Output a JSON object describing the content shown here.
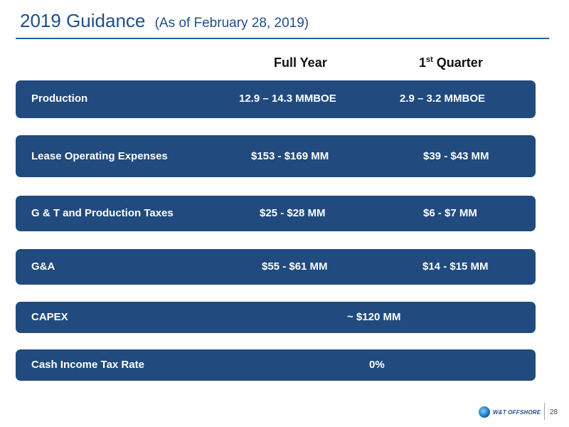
{
  "title": {
    "main": "2019 Guidance",
    "sub": "(As of February 28, 2019)"
  },
  "columns": {
    "full_year": "Full Year",
    "first_quarter_num": "1",
    "first_quarter_sup": "st",
    "first_quarter_rest": " Quarter"
  },
  "rows": [
    {
      "label": "Production",
      "full_year": "12.9 –  14.3 MMBOE",
      "first_quarter": "2.9 –  3.2 MMBOE"
    },
    {
      "label": "Lease Operating Expenses",
      "full_year": "$153 - $169 MM",
      "first_quarter": "$39 - $43 MM"
    },
    {
      "label": "G & T and Production Taxes",
      "full_year": "$25 - $28 MM",
      "first_quarter": "$6 - $7 MM"
    },
    {
      "label": "G&A",
      "full_year": "$55 - $61 MM",
      "first_quarter": "$14 - $15 MM"
    },
    {
      "label": "CAPEX",
      "combined": "~ $120  MM"
    },
    {
      "label": "Cash Income Tax Rate",
      "combined": "0%"
    }
  ],
  "footer": {
    "logo_text": "W&T OFFSHORE",
    "page_number": "28"
  },
  "colors": {
    "title": "#1f4e8c",
    "row_fill": "#214a7e"
  }
}
